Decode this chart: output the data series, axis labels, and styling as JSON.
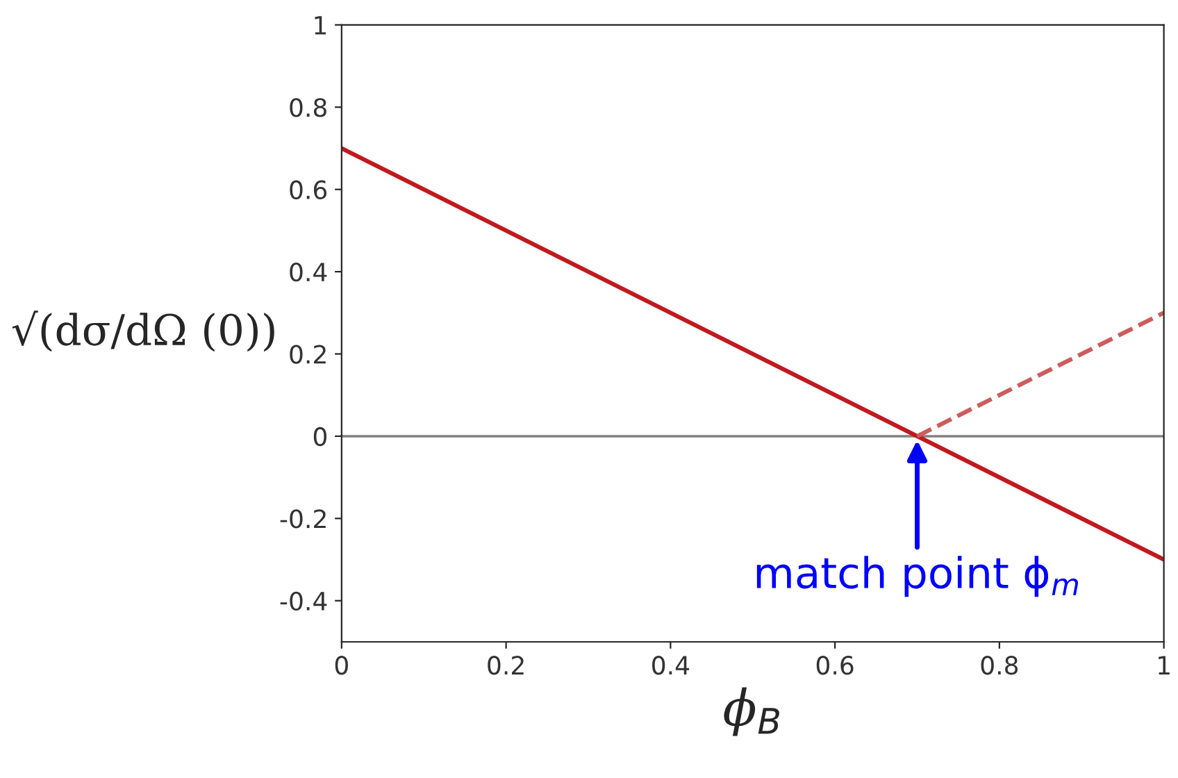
{
  "chart_data": {
    "type": "line",
    "xlabel": "ϕ$_{B}$",
    "ylabel": "√(dσ/dΩ (0))",
    "x": [
      0,
      1
    ],
    "series": [
      {
        "color": "#c0191e",
        "values": [
          0.7,
          -0.3
        ],
        "line_style": "solid"
      },
      {
        "color": "#cd5c5c",
        "x": [
          0.7,
          1
        ],
        "values": [
          0,
          0.3
        ],
        "line_style": "dashed"
      }
    ],
    "xlim": [
      0,
      1
    ],
    "ylim": [
      -0.5,
      1
    ],
    "xticks": [
      0,
      0.2,
      0.4,
      0.6,
      0.8,
      1
    ],
    "yticks": [
      -0.4,
      -0.2,
      0,
      0.2,
      0.4,
      0.6,
      0.8,
      1
    ],
    "ref_lines": [
      {
        "axis": "y",
        "value": 0,
        "color": "#808080"
      }
    ],
    "annotations": [
      {
        "text": "match point ϕ$_{m}$",
        "x": 0.7,
        "y": 0
      }
    ],
    "grid": false,
    "legend": false,
    "marker": "none"
  }
}
